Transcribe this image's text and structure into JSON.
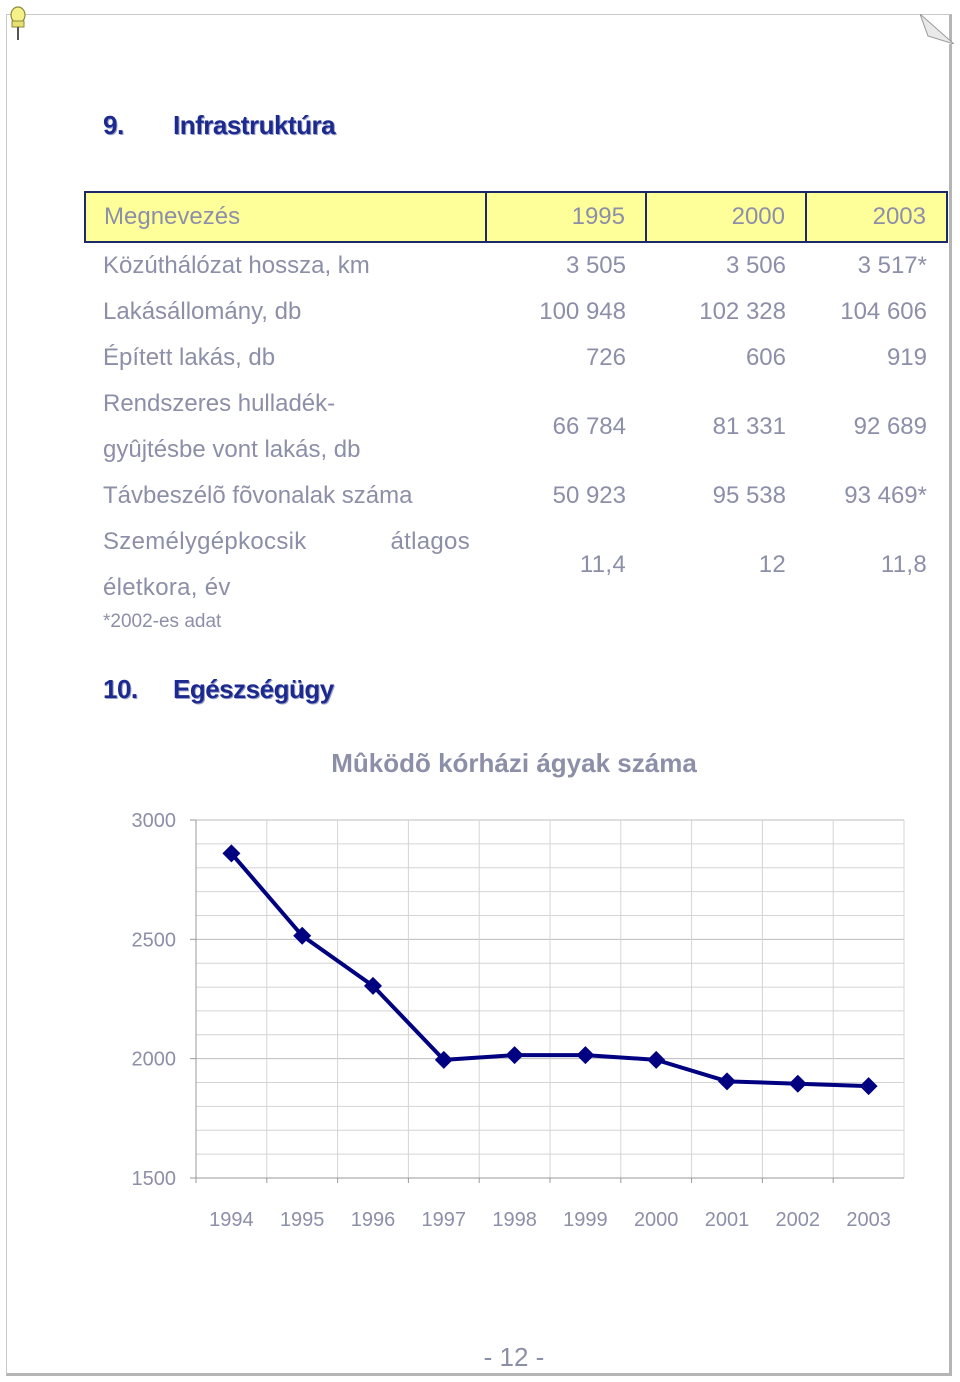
{
  "infrastructure": {
    "number": "9.",
    "title": "Infrastruktúra",
    "table": {
      "headers": [
        "Megnevezés",
        "1995",
        "2000",
        "2003"
      ],
      "rows": [
        {
          "label": "Közúthálózat hossza, km",
          "values": [
            "3 505",
            "3 506",
            "3 517*"
          ]
        },
        {
          "label": "Lakásállomány, db",
          "values": [
            "100 948",
            "102 328",
            "104 606"
          ]
        },
        {
          "label": "Épített lakás, db",
          "values": [
            "726",
            "606",
            "919"
          ]
        },
        {
          "label_line1": "Rendszeres hulladék-",
          "label_line2": "gyûjtésbe vont lakás, db",
          "values": [
            "66 784",
            "81 331",
            "92 689"
          ]
        },
        {
          "label": "Távbeszélõ fõvonalak száma",
          "values": [
            "50 923",
            "95 538",
            "93 469*"
          ]
        },
        {
          "label_line1a": "Személygépkocsik",
          "label_line1b": "átlagos",
          "label_line2": "életkora, év",
          "values": [
            "11,4",
            "12",
            "11,8"
          ]
        }
      ],
      "footnote": "*2002-es adat"
    }
  },
  "health": {
    "number": "10.",
    "title": "Egészségügy"
  },
  "chart_data": {
    "type": "line",
    "title": "Mûködõ kórházi ágyak száma",
    "x": [
      "1994",
      "1995",
      "1996",
      "1997",
      "1998",
      "1999",
      "2000",
      "2001",
      "2002",
      "2003"
    ],
    "series": [
      {
        "values": [
          2860,
          2515,
          2305,
          1995,
          2015,
          2015,
          1995,
          1905,
          1895,
          1885
        ],
        "color": "#000080"
      }
    ],
    "ylim": [
      1500,
      3000
    ],
    "yticks": [
      "1500",
      "2000",
      "2500",
      "3000"
    ],
    "grid": true,
    "legend": "none"
  },
  "page": {
    "number_label": "- 12 -"
  }
}
